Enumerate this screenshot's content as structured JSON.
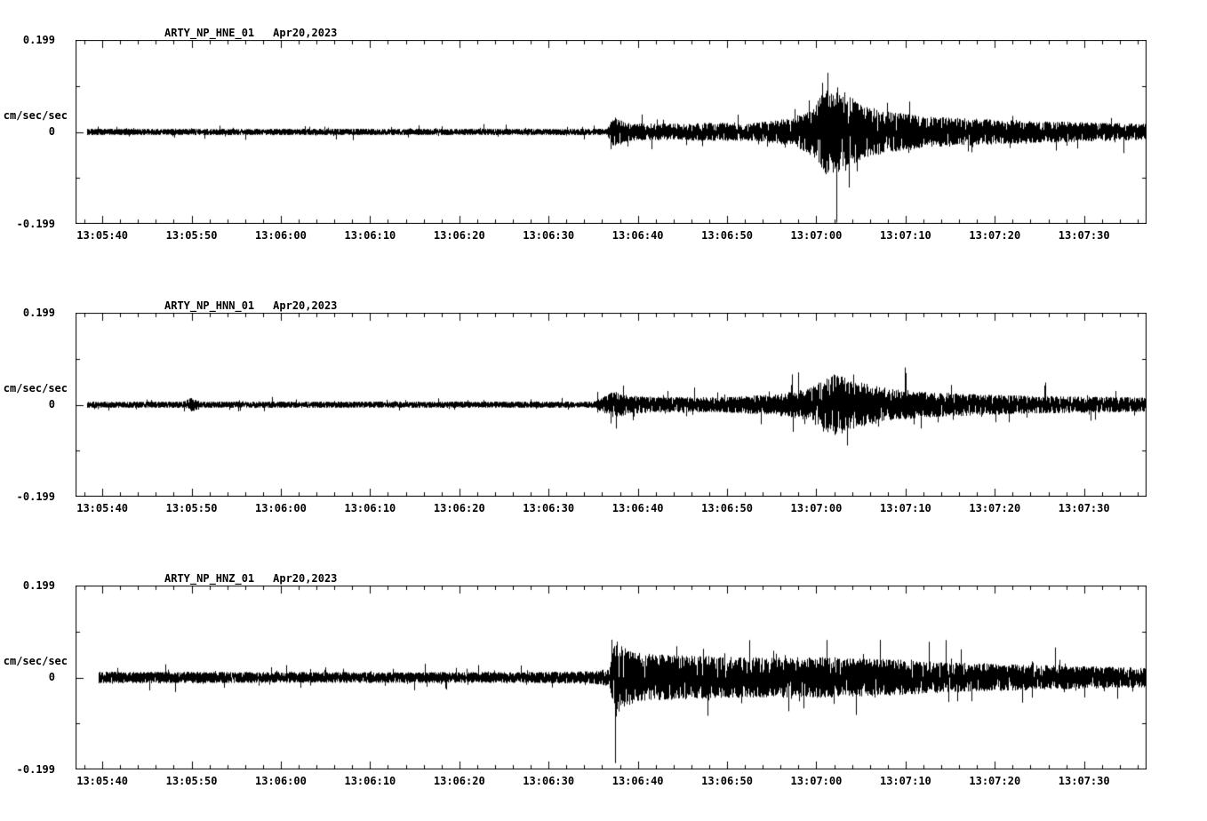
{
  "app": {
    "background": "#ffffff",
    "trace_color": "#000000"
  },
  "chart_data": [
    {
      "type": "line",
      "title": "ARTY_NP_HNE_01",
      "date": "Apr20,2023",
      "ylabel": "cm/sec/sec",
      "yticks": [
        "0.199",
        "0",
        "-0.199"
      ],
      "ylim": [
        -0.199,
        0.199
      ],
      "xticks": [
        "13:05:40",
        "13:05:50",
        "13:06:00",
        "13:06:10",
        "13:06:20",
        "13:06:30",
        "13:06:40",
        "13:06:50",
        "13:07:00",
        "13:07:10",
        "13:07:20",
        "13:07:30"
      ],
      "x_window_seconds": 120,
      "first_tick_offset_seconds": 3,
      "tick_spacing_seconds": 10,
      "data_start_seconds": 1.3,
      "envelope_units": "peak amplitude (cm/sec/sec) vs seconds from left edge of frame",
      "envelope": [
        [
          0,
          0.007
        ],
        [
          50,
          0.007
        ],
        [
          59.5,
          0.007
        ],
        [
          60.3,
          0.035
        ],
        [
          61.5,
          0.022
        ],
        [
          65,
          0.018
        ],
        [
          70,
          0.02
        ],
        [
          76,
          0.02
        ],
        [
          80,
          0.03
        ],
        [
          82.5,
          0.05
        ],
        [
          84,
          0.095
        ],
        [
          86,
          0.09
        ],
        [
          88,
          0.06
        ],
        [
          91,
          0.045
        ],
        [
          95,
          0.035
        ],
        [
          100,
          0.03
        ],
        [
          106,
          0.025
        ],
        [
          112,
          0.022
        ],
        [
          120,
          0.018
        ]
      ]
    },
    {
      "type": "line",
      "title": "ARTY_NP_HNN_01",
      "date": "Apr20,2023",
      "ylabel": "cm/sec/sec",
      "yticks": [
        "0.199",
        "0",
        "-0.199"
      ],
      "ylim": [
        -0.199,
        0.199
      ],
      "xticks": [
        "13:05:40",
        "13:05:50",
        "13:06:00",
        "13:06:10",
        "13:06:20",
        "13:06:30",
        "13:06:40",
        "13:06:50",
        "13:07:00",
        "13:07:10",
        "13:07:20",
        "13:07:30"
      ],
      "x_window_seconds": 120,
      "first_tick_offset_seconds": 3,
      "tick_spacing_seconds": 10,
      "data_start_seconds": 1.3,
      "envelope_units": "peak amplitude (cm/sec/sec) vs seconds from left edge of frame",
      "envelope": [
        [
          0,
          0.007
        ],
        [
          12,
          0.007
        ],
        [
          13,
          0.016
        ],
        [
          14,
          0.007
        ],
        [
          58,
          0.007
        ],
        [
          60.3,
          0.03
        ],
        [
          62,
          0.02
        ],
        [
          66,
          0.017
        ],
        [
          72,
          0.017
        ],
        [
          78,
          0.022
        ],
        [
          82,
          0.035
        ],
        [
          85,
          0.07
        ],
        [
          87,
          0.055
        ],
        [
          90,
          0.04
        ],
        [
          94,
          0.03
        ],
        [
          99,
          0.025
        ],
        [
          106,
          0.02
        ],
        [
          113,
          0.018
        ],
        [
          120,
          0.016
        ]
      ]
    },
    {
      "type": "line",
      "title": "ARTY_NP_HNZ_01",
      "date": "Apr20,2023",
      "ylabel": "cm/sec/sec",
      "yticks": [
        "0.199",
        "0",
        "-0.199"
      ],
      "ylim": [
        -0.199,
        0.199
      ],
      "xticks": [
        "13:05:40",
        "13:05:50",
        "13:06:00",
        "13:06:10",
        "13:06:20",
        "13:06:30",
        "13:06:40",
        "13:06:50",
        "13:07:00",
        "13:07:10",
        "13:07:20",
        "13:07:30"
      ],
      "x_window_seconds": 120,
      "first_tick_offset_seconds": 3,
      "tick_spacing_seconds": 10,
      "data_start_seconds": 2.6,
      "envelope_units": "peak amplitude (cm/sec/sec) vs seconds from left edge of frame",
      "envelope": [
        [
          0,
          0.013
        ],
        [
          30,
          0.012
        ],
        [
          50,
          0.012
        ],
        [
          58,
          0.014
        ],
        [
          59.8,
          0.02
        ],
        [
          60.5,
          0.09
        ],
        [
          61.5,
          0.065
        ],
        [
          63,
          0.055
        ],
        [
          66,
          0.05
        ],
        [
          70,
          0.048
        ],
        [
          75,
          0.045
        ],
        [
          80,
          0.045
        ],
        [
          85,
          0.045
        ],
        [
          88,
          0.042
        ],
        [
          92,
          0.04
        ],
        [
          96,
          0.035
        ],
        [
          101,
          0.032
        ],
        [
          107,
          0.028
        ],
        [
          113,
          0.025
        ],
        [
          120,
          0.022
        ]
      ]
    }
  ]
}
